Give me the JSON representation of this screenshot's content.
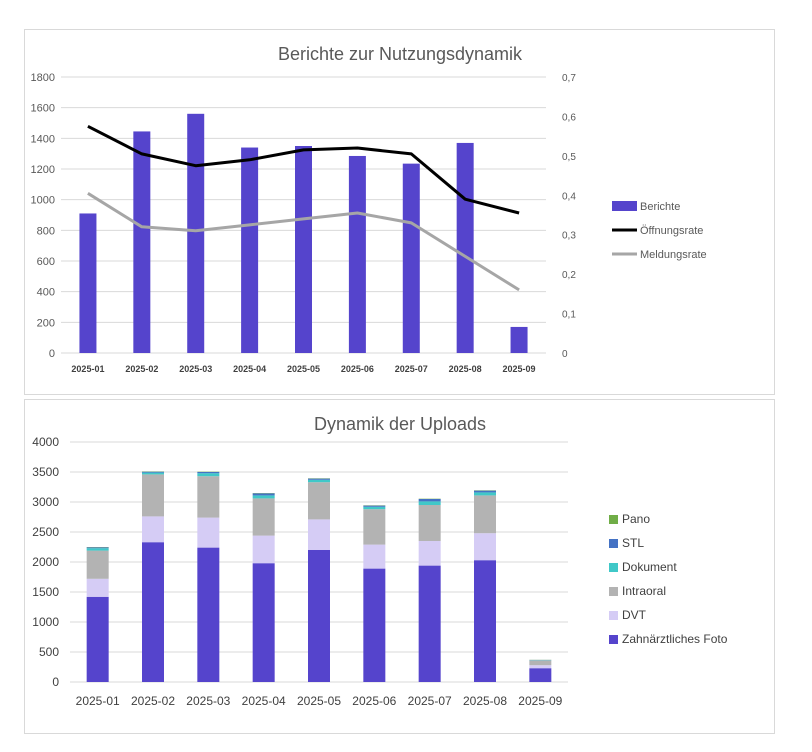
{
  "colors": {
    "berichte": "#5544cc",
    "oeffnungsrate": "#000000",
    "meldungsrate": "#a6a6a6",
    "foto": "#5544cc",
    "dvt": "#d5ccf5",
    "intraoral": "#b3b3b3",
    "dokument": "#40c8c8",
    "stl": "#4472c4",
    "pano": "#70ad47",
    "grid": "#d9d9d9",
    "text": "#595959"
  },
  "chart_data": [
    {
      "type": "bar",
      "title": "Berichte zur Nutzungsdynamik",
      "categories": [
        "2025-01",
        "2025-02",
        "2025-03",
        "2025-04",
        "2025-05",
        "2025-06",
        "2025-07",
        "2025-08",
        "2025-09"
      ],
      "ylim": [
        0,
        1800
      ],
      "yticks": [
        "0",
        "200",
        "400",
        "600",
        "800",
        "1000",
        "1200",
        "1400",
        "1600",
        "1800"
      ],
      "y2lim": [
        0,
        0.7
      ],
      "y2ticks": [
        "0",
        "0,1",
        "0,2",
        "0,3",
        "0,4",
        "0,5",
        "0,6",
        "0,7"
      ],
      "grid": true,
      "legend_position": "right",
      "series": [
        {
          "name": "Berichte",
          "kind": "bar",
          "axis": "left",
          "values": [
            910,
            1445,
            1560,
            1340,
            1350,
            1285,
            1235,
            1370,
            170
          ]
        },
        {
          "name": "Öffnungsrate",
          "kind": "line",
          "axis": "right",
          "values": [
            0.575,
            0.505,
            0.475,
            0.49,
            0.515,
            0.52,
            0.505,
            0.39,
            0.355
          ]
        },
        {
          "name": "Meldungsrate",
          "kind": "line",
          "axis": "right",
          "values": [
            0.405,
            0.32,
            0.31,
            0.325,
            0.34,
            0.355,
            0.33,
            0.245,
            0.16
          ]
        }
      ]
    },
    {
      "type": "bar",
      "stacked": true,
      "title": "Dynamik der Uploads",
      "categories": [
        "2025-01",
        "2025-02",
        "2025-03",
        "2025-04",
        "2025-05",
        "2025-06",
        "2025-07",
        "2025-08",
        "2025-09"
      ],
      "ylim": [
        0,
        4000
      ],
      "yticks": [
        "0",
        "500",
        "1000",
        "1500",
        "2000",
        "2500",
        "3000",
        "3500",
        "4000"
      ],
      "grid": true,
      "legend_position": "right",
      "series": [
        {
          "name": "Zahnärztliches Foto",
          "values": [
            1420,
            2330,
            2240,
            1980,
            2200,
            1890,
            1940,
            2030,
            230
          ]
        },
        {
          "name": "DVT",
          "values": [
            300,
            430,
            500,
            460,
            510,
            400,
            410,
            450,
            50
          ]
        },
        {
          "name": "Intraoral",
          "values": [
            470,
            700,
            690,
            620,
            620,
            590,
            600,
            630,
            80
          ]
        },
        {
          "name": "Dokument",
          "values": [
            40,
            30,
            50,
            50,
            40,
            40,
            60,
            50,
            5
          ]
        },
        {
          "name": "STL",
          "values": [
            15,
            15,
            20,
            35,
            20,
            20,
            40,
            30,
            3
          ]
        },
        {
          "name": "Pano",
          "values": [
            5,
            5,
            5,
            5,
            5,
            5,
            5,
            5,
            2
          ]
        }
      ]
    }
  ]
}
